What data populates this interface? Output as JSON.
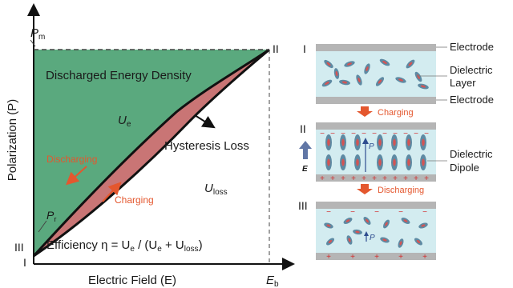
{
  "left_plot": {
    "y_axis_label": "Polarization (P)",
    "x_axis_label": "Electric Field (E)",
    "pm_label": "P",
    "pm_sub": "m",
    "pr_label": "P",
    "pr_sub": "r",
    "eb_label": "E",
    "eb_sub": "b",
    "point_labels": [
      "I",
      "II",
      "III"
    ],
    "discharged_title": "Discharged Energy Density",
    "ue_label": "U",
    "ue_sub": "e",
    "hysteresis_title": "Hysteresis Loss",
    "uloss_label": "U",
    "uloss_sub": "loss",
    "discharging_label": "Discharging",
    "charging_label": "Charging",
    "efficiency_text": "Efficiency η = U",
    "efficiency_sub1": "e",
    "efficiency_mid": " / (U",
    "efficiency_sub2": "e",
    "efficiency_mid2": " + U",
    "efficiency_sub3": "loss",
    "efficiency_end": ")",
    "colors": {
      "green_fill": "#5aa97e",
      "red_fill": "#c97575",
      "arrow": "#e4572e"
    }
  },
  "right_panels": {
    "stage_labels": [
      "I",
      "II",
      "III"
    ],
    "electrode_label": "Electrode",
    "dielectric_label_1": "Dielectric",
    "dielectric_label_2": "Layer",
    "electrode_label_2": "Electrode",
    "dipole_label_1": "Dielectric",
    "dipole_label_2": "Dipole",
    "charging_label": "Charging",
    "discharging_label": "Discharging",
    "field_label": "E",
    "polarization_label": "P",
    "colors": {
      "layer": "#d3ecf0",
      "electrode": "#b5b5b5",
      "dipole": "#5e8aa3",
      "dipole_core": "#d35454",
      "arrow": "#e4572e",
      "field_arrow": "#6177a6"
    }
  }
}
